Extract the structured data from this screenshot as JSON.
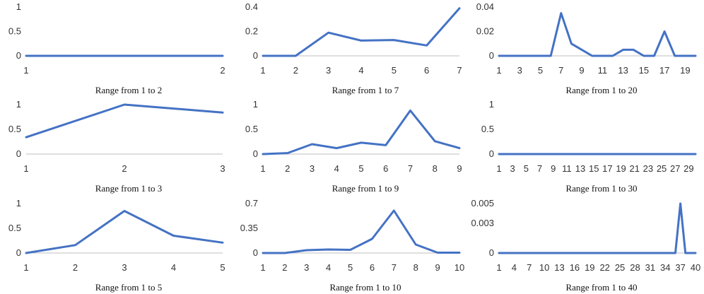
{
  "colors": {
    "line": "#4472C4",
    "axis": "#BFBFBF",
    "text": "#333333"
  },
  "chart_data": [
    {
      "type": "line",
      "xlabel": "Range from 1 to 2",
      "ylim": [
        0,
        1
      ],
      "yticks": [
        "0",
        "0.5",
        "1"
      ],
      "x": [
        1,
        2
      ],
      "xticks": [
        "1",
        "2"
      ],
      "values": [
        0,
        0
      ]
    },
    {
      "type": "line",
      "xlabel": "Range from 1 to 7",
      "ylim": [
        0,
        0.4
      ],
      "yticks": [
        "0",
        "0.2",
        "0.4"
      ],
      "x": [
        1,
        2,
        3,
        4,
        5,
        6,
        7
      ],
      "xticks": [
        "1",
        "2",
        "3",
        "4",
        "5",
        "6",
        "7"
      ],
      "values": [
        0,
        0,
        0.19,
        0.125,
        0.13,
        0.085,
        0.39
      ]
    },
    {
      "type": "line",
      "xlabel": "Range from 1 to 20",
      "ylim": [
        0,
        0.04
      ],
      "yticks": [
        "0",
        "0.02",
        "0.04"
      ],
      "x": [
        1,
        2,
        3,
        4,
        5,
        6,
        7,
        8,
        9,
        10,
        11,
        12,
        13,
        14,
        15,
        16,
        17,
        18,
        19,
        20
      ],
      "xticks": [
        "1",
        "3",
        "5",
        "7",
        "9",
        "11",
        "13",
        "15",
        "17",
        "19"
      ],
      "values": [
        0,
        0,
        0,
        0,
        0,
        0,
        0.035,
        0.01,
        0.005,
        0,
        0,
        0,
        0.005,
        0.005,
        0,
        0,
        0.02,
        0,
        0,
        0
      ]
    },
    {
      "type": "line",
      "xlabel": "Range from 1 to 3",
      "ylim": [
        0,
        1
      ],
      "yticks": [
        "0",
        "0.5",
        "1"
      ],
      "x": [
        1,
        2,
        3
      ],
      "xticks": [
        "1",
        "2",
        "3"
      ],
      "values": [
        0.34,
        1.0,
        0.84
      ]
    },
    {
      "type": "line",
      "xlabel": "Range from 1 to 9",
      "ylim": [
        0,
        1
      ],
      "yticks": [
        "0",
        "0.5",
        "1"
      ],
      "x": [
        1,
        2,
        3,
        4,
        5,
        6,
        7,
        8,
        9
      ],
      "xticks": [
        "1",
        "2",
        "3",
        "4",
        "5",
        "6",
        "7",
        "8",
        "9"
      ],
      "values": [
        0,
        0.02,
        0.2,
        0.12,
        0.23,
        0.18,
        0.88,
        0.26,
        0.12
      ]
    },
    {
      "type": "line",
      "xlabel": "Range from 1 to 30",
      "ylim": [
        0,
        1
      ],
      "yticks": [
        "0",
        "0.5",
        "1"
      ],
      "x": [
        1,
        2,
        3,
        4,
        5,
        6,
        7,
        8,
        9,
        10,
        11,
        12,
        13,
        14,
        15,
        16,
        17,
        18,
        19,
        20,
        21,
        22,
        23,
        24,
        25,
        26,
        27,
        28,
        29,
        30
      ],
      "xticks": [
        "1",
        "3",
        "5",
        "7",
        "9",
        "11",
        "13",
        "15",
        "17",
        "19",
        "21",
        "23",
        "25",
        "27",
        "29"
      ],
      "values": [
        0,
        0,
        0,
        0,
        0,
        0,
        0,
        0,
        0,
        0,
        0,
        0,
        0,
        0,
        0,
        0,
        0,
        0,
        0,
        0,
        0,
        0,
        0,
        0,
        0,
        0,
        0,
        0,
        0,
        0
      ]
    },
    {
      "type": "line",
      "xlabel": "Range from 1 to 5",
      "ylim": [
        0,
        1
      ],
      "yticks": [
        "0",
        "0.5",
        "1"
      ],
      "x": [
        1,
        2,
        3,
        4,
        5
      ],
      "xticks": [
        "1",
        "2",
        "3",
        "4",
        "5"
      ],
      "values": [
        0,
        0.16,
        0.85,
        0.35,
        0.21
      ]
    },
    {
      "type": "line",
      "xlabel": "Range from 1 to 10",
      "ylim": [
        0,
        0.7
      ],
      "yticks": [
        "0",
        "0.35",
        "0.7"
      ],
      "x": [
        1,
        2,
        3,
        4,
        5,
        6,
        7,
        8,
        9,
        10
      ],
      "xticks": [
        "1",
        "2",
        "3",
        "4",
        "5",
        "6",
        "7",
        "8",
        "9",
        "10"
      ],
      "values": [
        0,
        0,
        0.04,
        0.05,
        0.045,
        0.2,
        0.6,
        0.12,
        0.005,
        0.005
      ]
    },
    {
      "type": "line",
      "xlabel": "Range from 1 to 40",
      "ylim": [
        0,
        0.005
      ],
      "yticks": [
        "0",
        "0.003",
        "0.005"
      ],
      "x": [
        1,
        2,
        3,
        4,
        5,
        6,
        7,
        8,
        9,
        10,
        11,
        12,
        13,
        14,
        15,
        16,
        17,
        18,
        19,
        20,
        21,
        22,
        23,
        24,
        25,
        26,
        27,
        28,
        29,
        30,
        31,
        32,
        33,
        34,
        35,
        36,
        37,
        38,
        39,
        40
      ],
      "xticks": [
        "1",
        "4",
        "7",
        "10",
        "13",
        "16",
        "19",
        "22",
        "25",
        "28",
        "31",
        "34",
        "37",
        "40"
      ],
      "values": [
        0,
        0,
        0,
        0,
        0,
        0,
        0,
        0,
        0,
        0,
        0,
        0,
        0,
        0,
        0,
        0,
        0,
        0,
        0,
        0,
        0,
        0,
        0,
        0,
        0,
        0,
        0,
        0,
        0,
        0,
        0,
        0,
        0,
        0,
        0,
        0,
        0.005,
        0,
        0,
        0
      ]
    }
  ]
}
